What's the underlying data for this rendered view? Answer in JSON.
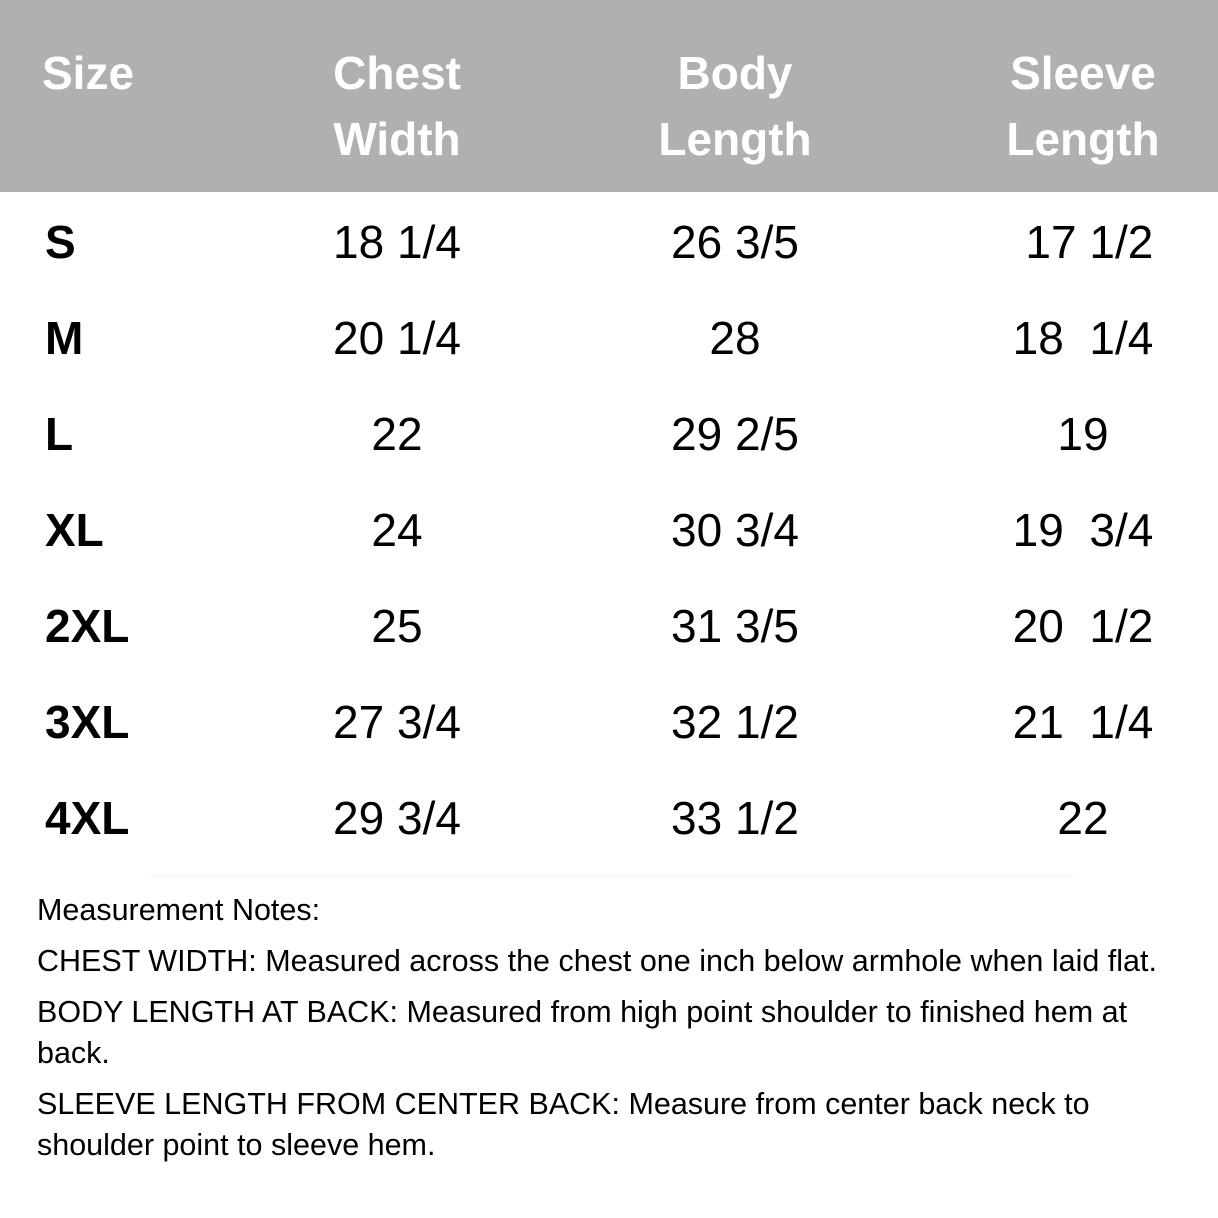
{
  "headers": [
    "Size",
    "Chest\nWidth",
    "Body\nLength",
    "Sleeve\nLength"
  ],
  "rows": [
    [
      "S",
      "18 1/4",
      "26 3/5",
      " 17 1/2"
    ],
    [
      "M",
      "20 1/4",
      "28",
      "18  1/4"
    ],
    [
      "L",
      "22",
      "29 2/5",
      "19"
    ],
    [
      "XL",
      "24",
      "30 3/4",
      "19  3/4"
    ],
    [
      "2XL",
      "25",
      "31 3/5",
      "20  1/2"
    ],
    [
      "3XL",
      "27 3/4",
      "32 1/2",
      "21  1/4"
    ],
    [
      "4XL",
      "29 3/4",
      "33 1/2",
      "22"
    ]
  ],
  "notes": {
    "title": "Measurement Notes:",
    "items": [
      {
        "label": "CHEST WIDTH:",
        "text": " Measured across the chest one inch below armhole when laid flat."
      },
      {
        "label": "BODY LENGTH AT BACK:",
        "text": " Measured from high point shoulder to finished hem at back."
      },
      {
        "label": "SLEEVE LENGTH FROM CENTER BACK:",
        "text": " Measure from center back neck to shoulder point to sleeve hem."
      }
    ]
  },
  "colors": {
    "header_bg": "#b0b0b0",
    "header_text": "#ffffff"
  }
}
